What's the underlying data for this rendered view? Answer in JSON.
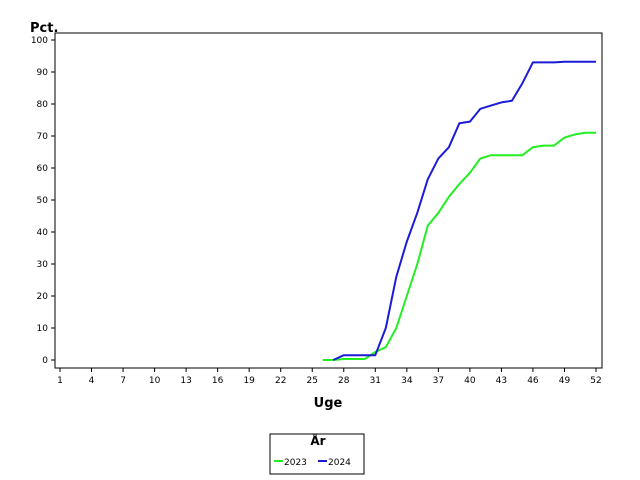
{
  "chart_data": {
    "type": "line",
    "ylabel": "Pct.",
    "xlabel": "Uge",
    "legend_title": "År",
    "legend_position": "bottom-center",
    "grid": false,
    "xlim": [
      1,
      52
    ],
    "ylim": [
      0,
      100
    ],
    "x_ticks": [
      "1",
      "4",
      "7",
      "10",
      "13",
      "16",
      "19",
      "22",
      "25",
      "28",
      "31",
      "34",
      "37",
      "40",
      "43",
      "46",
      "49",
      "52"
    ],
    "y_ticks": [
      "0",
      "10",
      "20",
      "30",
      "40",
      "50",
      "60",
      "70",
      "80",
      "90",
      "100"
    ],
    "series": [
      {
        "name": "2023",
        "color": "#22ee22",
        "points": [
          [
            26,
            0
          ],
          [
            27,
            0
          ],
          [
            28,
            0.3
          ],
          [
            29,
            0.3
          ],
          [
            30,
            0.3
          ],
          [
            31,
            2.5
          ],
          [
            32,
            4
          ],
          [
            33,
            10
          ],
          [
            34,
            20
          ],
          [
            35,
            30
          ],
          [
            36,
            42
          ],
          [
            37,
            46
          ],
          [
            38,
            51
          ],
          [
            39,
            55
          ],
          [
            40,
            58.5
          ],
          [
            41,
            63
          ],
          [
            42,
            64
          ],
          [
            43,
            64
          ],
          [
            44,
            64
          ],
          [
            45,
            64
          ],
          [
            46,
            66.5
          ],
          [
            47,
            67
          ],
          [
            48,
            67
          ],
          [
            49,
            69.5
          ],
          [
            50,
            70.5
          ],
          [
            51,
            71
          ],
          [
            52,
            71
          ]
        ]
      },
      {
        "name": "2024",
        "color": "#1c1cd8",
        "points": [
          [
            27,
            0
          ],
          [
            28,
            1.5
          ],
          [
            29,
            1.5
          ],
          [
            30,
            1.5
          ],
          [
            31,
            1.5
          ],
          [
            32,
            10
          ],
          [
            33,
            26
          ],
          [
            34,
            37
          ],
          [
            35,
            46
          ],
          [
            36,
            56.5
          ],
          [
            37,
            63
          ],
          [
            38,
            66.5
          ],
          [
            39,
            74
          ],
          [
            40,
            74.5
          ],
          [
            41,
            78.5
          ],
          [
            42,
            79.5
          ],
          [
            43,
            80.5
          ],
          [
            44,
            81
          ],
          [
            45,
            86.5
          ],
          [
            46,
            93
          ],
          [
            47,
            93
          ],
          [
            48,
            93
          ],
          [
            49,
            93.2
          ],
          [
            50,
            93.2
          ],
          [
            51,
            93.2
          ],
          [
            52,
            93.2
          ]
        ]
      }
    ]
  }
}
